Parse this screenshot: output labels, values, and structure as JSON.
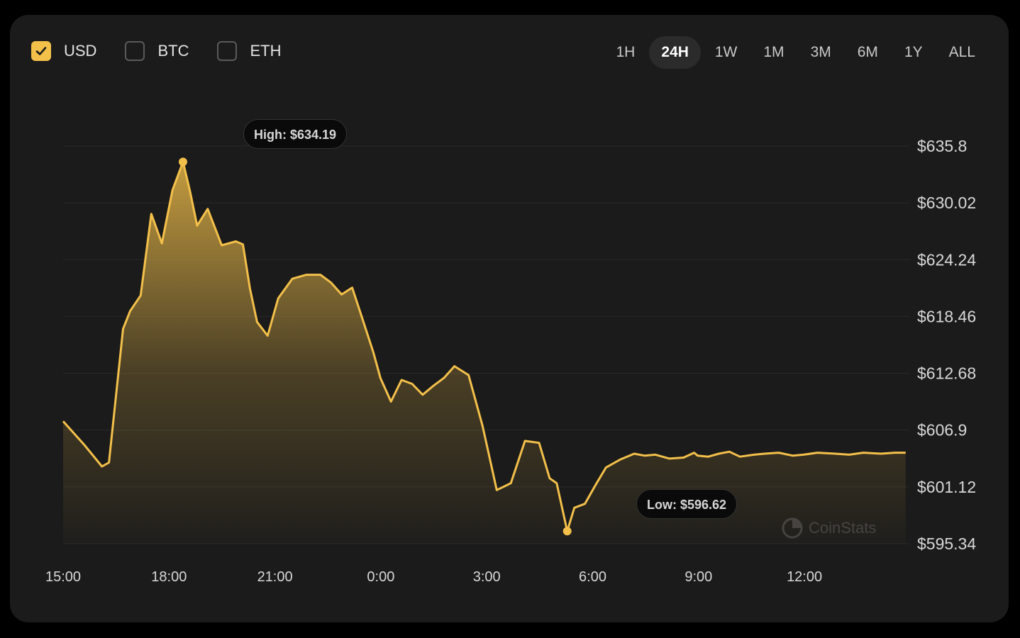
{
  "currencies": [
    {
      "label": "USD",
      "checked": true
    },
    {
      "label": "BTC",
      "checked": false
    },
    {
      "label": "ETH",
      "checked": false
    }
  ],
  "ranges": [
    "1H",
    "24H",
    "1W",
    "1M",
    "3M",
    "6M",
    "1Y",
    "ALL"
  ],
  "active_range": "24H",
  "colors": {
    "accent": "#f3c04a",
    "background": "#1b1b1b",
    "grid": "#2c2c2c"
  },
  "watermark": "CoinStats",
  "high_label": "High: $634.19",
  "low_label": "Low: $596.62",
  "chart_data": {
    "type": "area",
    "x_ticks": [
      "15:00",
      "18:00",
      "21:00",
      "0:00",
      "3:00",
      "6:00",
      "9:00",
      "12:00"
    ],
    "y_ticks": [
      "$635.8",
      "$630.02",
      "$624.24",
      "$618.46",
      "$612.68",
      "$606.9",
      "$601.12",
      "$595.34"
    ],
    "ylim": [
      595.34,
      635.8
    ],
    "x_hours_from_15": [
      0,
      0.6,
      1.1,
      1.3,
      1.7,
      1.9,
      2.2,
      2.5,
      2.8,
      3.1,
      3.4,
      3.6,
      3.8,
      4.1,
      4.5,
      4.9,
      5.1,
      5.3,
      5.5,
      5.8,
      6.1,
      6.5,
      6.9,
      7.3,
      7.6,
      7.9,
      8.2,
      8.5,
      8.8,
      9.0,
      9.3,
      9.6,
      9.9,
      10.2,
      10.5,
      10.8,
      11.1,
      11.5,
      11.9,
      12.3,
      12.7,
      13.1,
      13.5,
      13.8,
      14.0,
      14.3,
      14.5,
      14.8,
      15.1,
      15.4,
      15.8,
      16.2,
      16.5,
      16.8,
      17.2,
      17.6,
      17.9,
      18.0,
      18.3,
      18.6,
      18.9,
      19.2,
      19.6,
      19.9,
      20.3,
      20.7,
      21.0,
      21.4,
      21.9,
      22.3,
      22.7,
      23.2,
      23.6,
      23.9
    ],
    "values": [
      607.8,
      605.4,
      603.2,
      603.6,
      617.2,
      619.0,
      620.6,
      628.9,
      625.9,
      631.3,
      634.19,
      631.2,
      627.7,
      629.4,
      625.7,
      626.1,
      625.8,
      621.3,
      617.9,
      616.5,
      620.3,
      622.3,
      622.7,
      622.7,
      621.9,
      620.7,
      621.4,
      618.1,
      614.8,
      612.2,
      609.8,
      612.0,
      611.6,
      610.5,
      611.4,
      612.2,
      613.4,
      612.5,
      607.3,
      600.8,
      601.5,
      605.8,
      605.6,
      602.0,
      601.5,
      596.62,
      599.0,
      599.4,
      601.3,
      603.1,
      603.9,
      604.5,
      604.3,
      604.4,
      604.0,
      604.1,
      604.6,
      604.3,
      604.2,
      604.5,
      604.7,
      604.2,
      604.4,
      604.5,
      604.6,
      604.3,
      604.4,
      604.6,
      604.5,
      604.4,
      604.6,
      604.5,
      604.6,
      604.6
    ]
  }
}
